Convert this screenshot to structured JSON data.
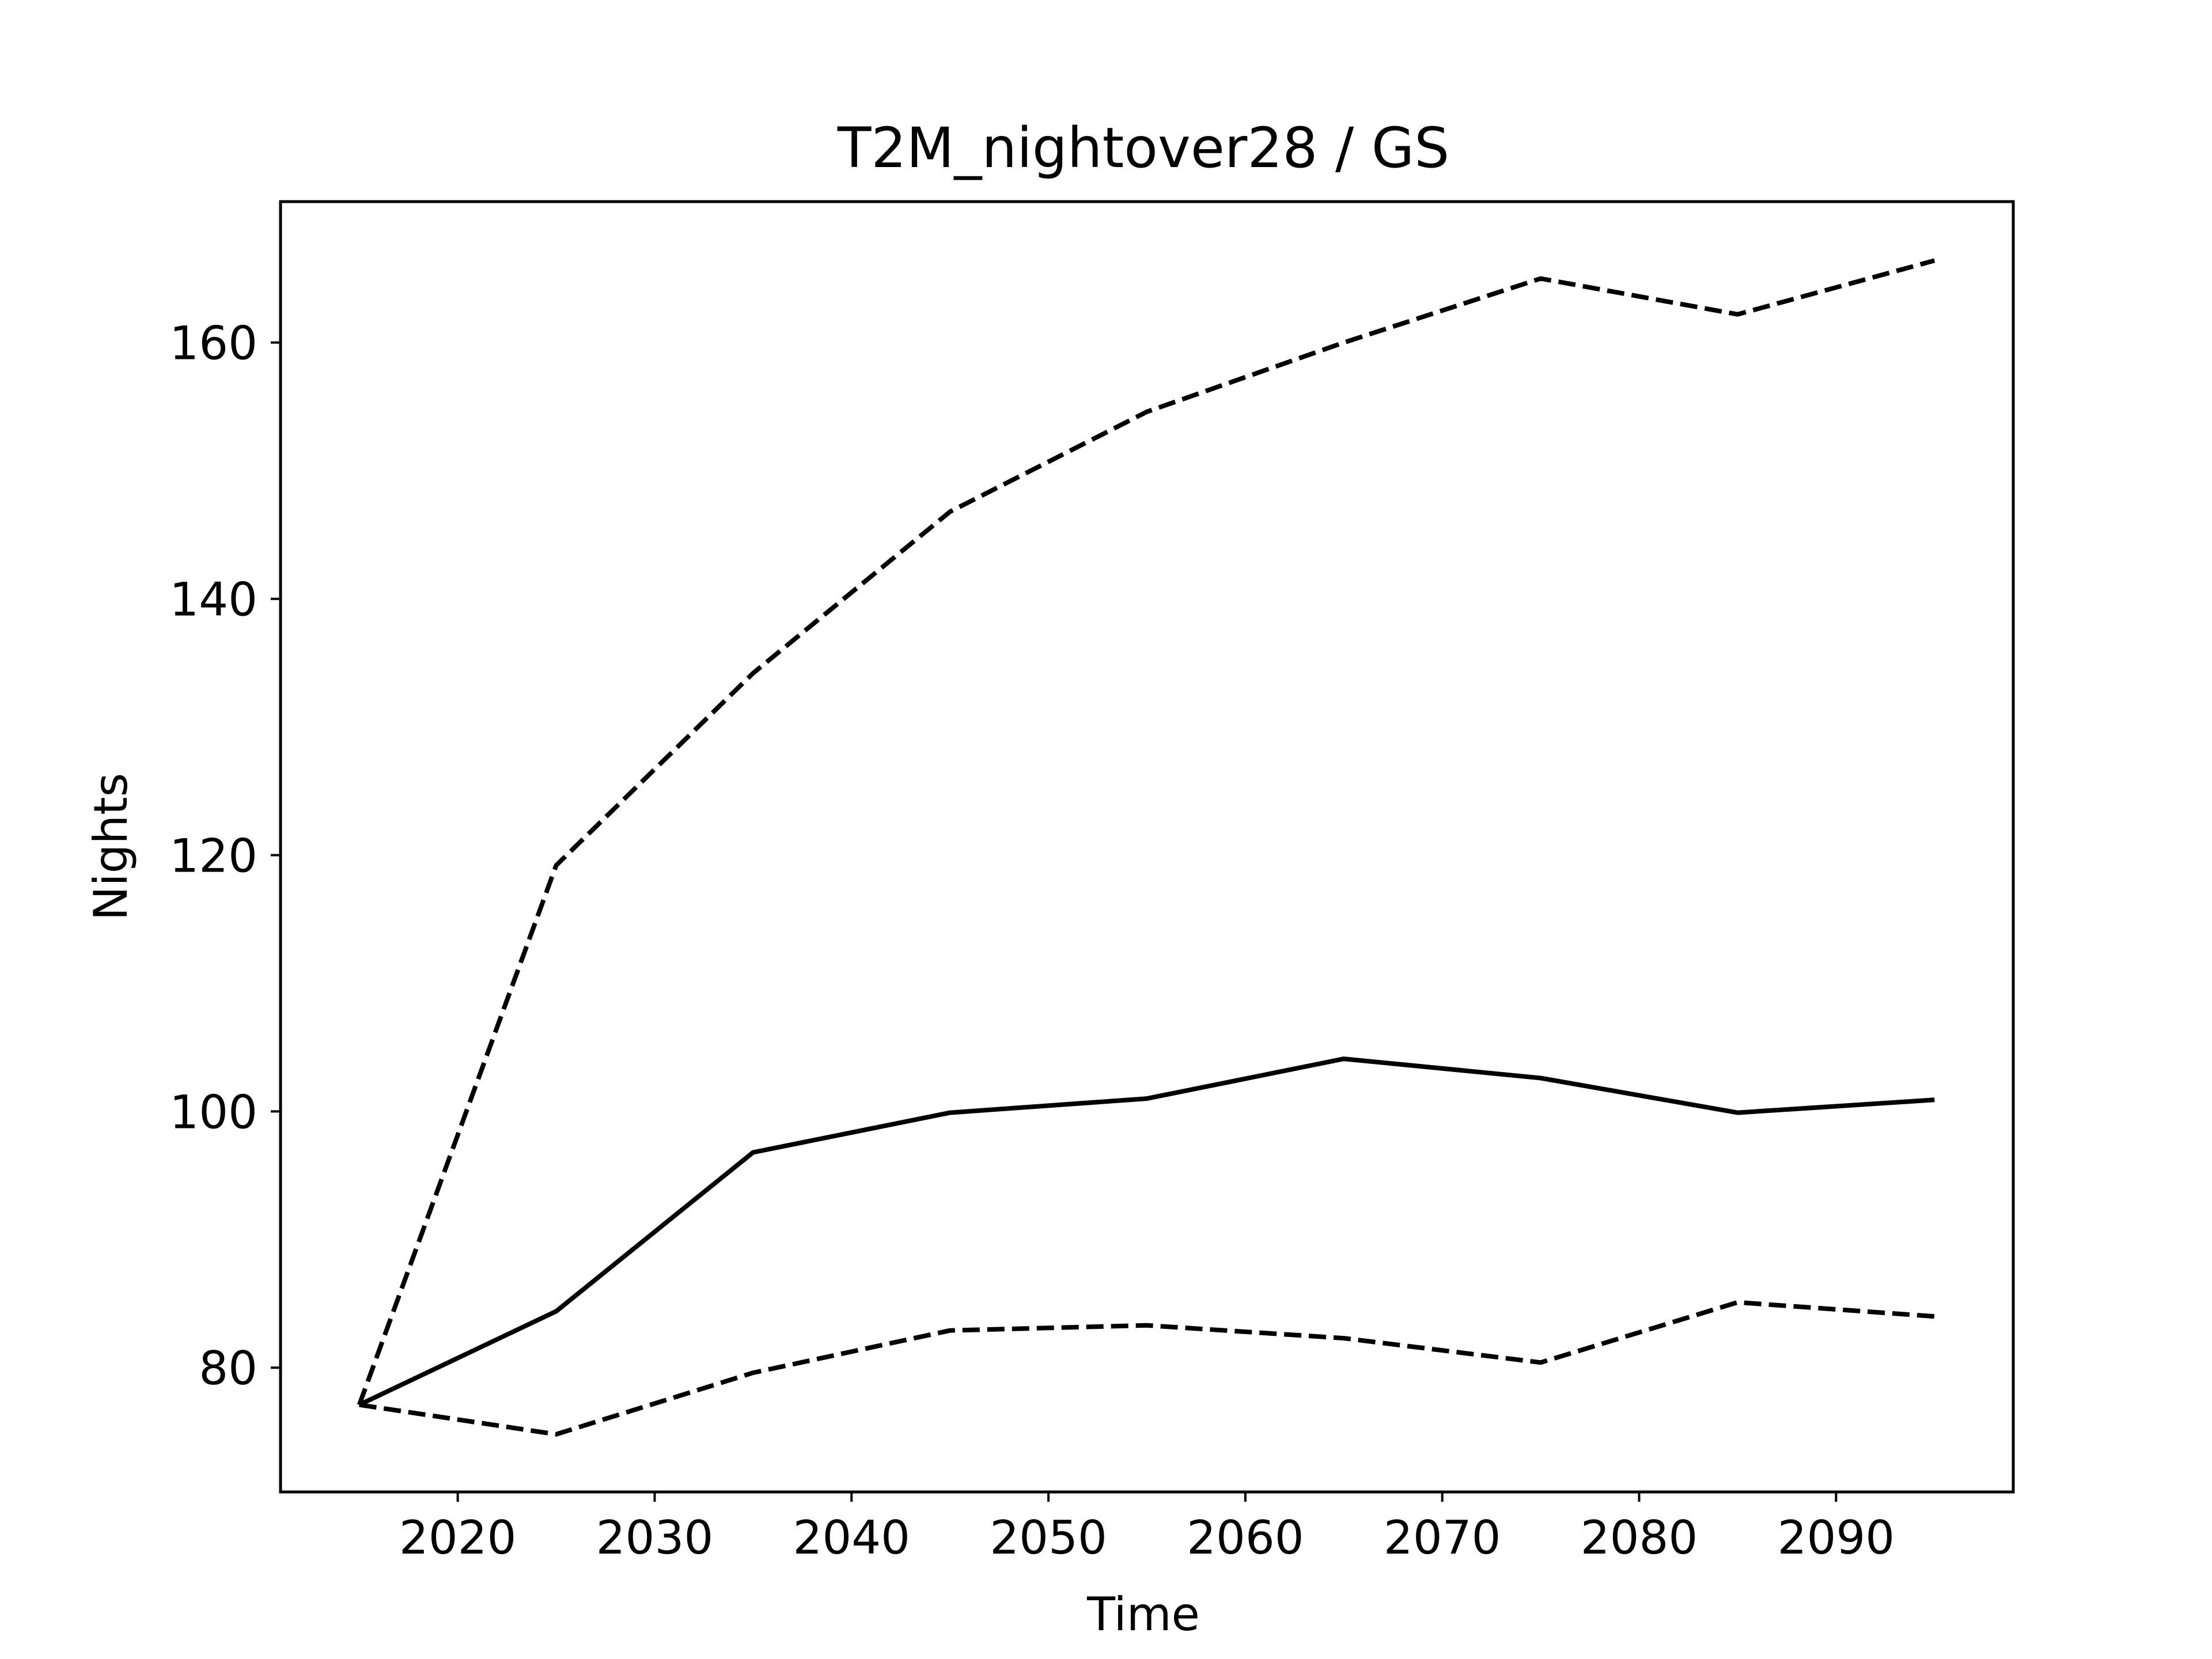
{
  "chart_data": {
    "type": "line",
    "title": "T2M_nightover28 / GS",
    "xlabel": "Time",
    "ylabel": "Nights",
    "x": [
      2015,
      2025,
      2035,
      2045,
      2055,
      2065,
      2075,
      2085,
      2095
    ],
    "xlim": [
      2011,
      2099
    ],
    "ylim": [
      70.3,
      171
    ],
    "x_ticks": [
      2020,
      2030,
      2040,
      2050,
      2060,
      2070,
      2080,
      2090
    ],
    "y_ticks": [
      80,
      100,
      120,
      140,
      160
    ],
    "grid": false,
    "legend": "none",
    "series": [
      {
        "style": "solid",
        "color": "#000000",
        "values": [
          77.1,
          84.4,
          96.8,
          99.9,
          101.0,
          104.1,
          102.6,
          99.9,
          100.9
        ]
      },
      {
        "style": "dashed",
        "color": "#000000",
        "values": [
          77.1,
          119.2,
          134.2,
          146.8,
          154.6,
          160.0,
          165.0,
          162.2,
          166.4
        ]
      },
      {
        "style": "dashed",
        "color": "#000000",
        "values": [
          77.1,
          74.8,
          79.6,
          82.9,
          83.3,
          82.3,
          80.4,
          85.1,
          84.0
        ]
      }
    ]
  }
}
